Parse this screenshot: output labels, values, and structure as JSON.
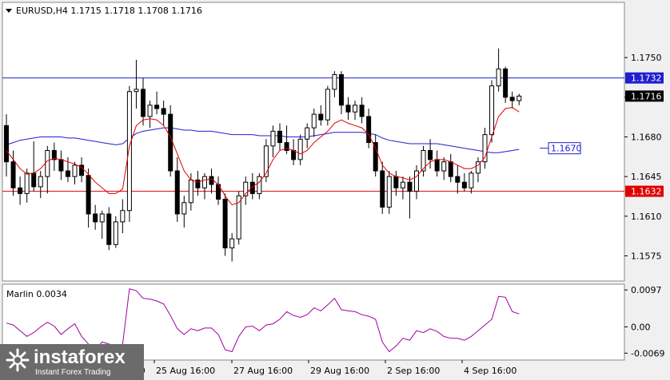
{
  "chart_data": [
    {
      "type": "candlestick",
      "symbol_line": "EURUSD,H4  1.1715 1.1718 1.1708 1.1716",
      "y_ticks": [
        "1.1750",
        "1.1715",
        "1.1680",
        "1.1645",
        "1.1610",
        "1.1575"
      ],
      "y_tick_values": [
        1.175,
        1.1715,
        1.168,
        1.1645,
        1.161,
        1.1575
      ],
      "ylim": [
        1.15535,
        1.1798
      ],
      "x_ticks": [
        "25 Aug 16:00",
        "27 Aug 16:00",
        "29 Aug 16:00",
        "2 Sep 16:00",
        "4 Sep 16:00"
      ],
      "x_tick_cut": "Instant Forex Trading",
      "x_tick_partial": [
        "19",
        "16:00"
      ],
      "levels": [
        {
          "label": "1.1732",
          "value": 1.1732,
          "color": "#1f1fd0"
        },
        {
          "label": "1.1632",
          "value": 1.1632,
          "color": "#e00000"
        }
      ],
      "current_price": {
        "label": "1.1716",
        "value": 1.1716
      },
      "annotation": {
        "label": "1.1670",
        "value": 1.167,
        "color": "#1f1fd0"
      },
      "ohlc": [
        [
          1.169,
          1.17,
          1.1645,
          1.1658
        ],
        [
          1.1658,
          1.1668,
          1.1628,
          1.1635
        ],
        [
          1.1635,
          1.1645,
          1.162,
          1.163
        ],
        [
          1.163,
          1.1652,
          1.1622,
          1.1648
        ],
        [
          1.1648,
          1.1676,
          1.1632,
          1.1636
        ],
        [
          1.1636,
          1.165,
          1.1626,
          1.1645
        ],
        [
          1.1645,
          1.1672,
          1.163,
          1.1668
        ],
        [
          1.1668,
          1.1675,
          1.165,
          1.166
        ],
        [
          1.166,
          1.1668,
          1.1642,
          1.165
        ],
        [
          1.165,
          1.1662,
          1.164,
          1.1645
        ],
        [
          1.1645,
          1.1658,
          1.1638,
          1.1655
        ],
        [
          1.1655,
          1.1662,
          1.164,
          1.1646
        ],
        [
          1.1646,
          1.1652,
          1.16,
          1.1612
        ],
        [
          1.1612,
          1.162,
          1.1598,
          1.1605
        ],
        [
          1.1605,
          1.1615,
          1.159,
          1.1612
        ],
        [
          1.1612,
          1.1618,
          1.158,
          1.1585
        ],
        [
          1.1585,
          1.161,
          1.1582,
          1.1605
        ],
        [
          1.1605,
          1.1625,
          1.1595,
          1.1615
        ],
        [
          1.1615,
          1.1725,
          1.1605,
          1.172
        ],
        [
          1.172,
          1.1748,
          1.1705,
          1.1722
        ],
        [
          1.1722,
          1.1732,
          1.169,
          1.1698
        ],
        [
          1.1698,
          1.1712,
          1.1688,
          1.1708
        ],
        [
          1.1708,
          1.172,
          1.17,
          1.1705
        ],
        [
          1.1705,
          1.1712,
          1.169,
          1.17
        ],
        [
          1.17,
          1.1708,
          1.1645,
          1.165
        ],
        [
          1.165,
          1.1662,
          1.1605,
          1.1612
        ],
        [
          1.1612,
          1.1628,
          1.16,
          1.1622
        ],
        [
          1.1622,
          1.1648,
          1.1615,
          1.1642
        ],
        [
          1.1642,
          1.165,
          1.1628,
          1.1635
        ],
        [
          1.1635,
          1.1648,
          1.1625,
          1.1645
        ],
        [
          1.1645,
          1.1652,
          1.163,
          1.1638
        ],
        [
          1.1638,
          1.1645,
          1.162,
          1.1625
        ],
        [
          1.1625,
          1.163,
          1.1575,
          1.1582
        ],
        [
          1.1582,
          1.1595,
          1.157,
          1.159
        ],
        [
          1.159,
          1.1632,
          1.1585,
          1.1628
        ],
        [
          1.1628,
          1.1645,
          1.162,
          1.164
        ],
        [
          1.164,
          1.1648,
          1.1625,
          1.163
        ],
        [
          1.163,
          1.1648,
          1.1625,
          1.1645
        ],
        [
          1.1645,
          1.1678,
          1.164,
          1.1672
        ],
        [
          1.1672,
          1.169,
          1.1662,
          1.1685
        ],
        [
          1.1685,
          1.1692,
          1.1668,
          1.1675
        ],
        [
          1.1675,
          1.169,
          1.1665,
          1.1668
        ],
        [
          1.1668,
          1.1678,
          1.1655,
          1.166
        ],
        [
          1.166,
          1.1682,
          1.1655,
          1.1678
        ],
        [
          1.1678,
          1.1692,
          1.167,
          1.1688
        ],
        [
          1.1688,
          1.1705,
          1.168,
          1.17
        ],
        [
          1.17,
          1.1708,
          1.169,
          1.1695
        ],
        [
          1.1695,
          1.1725,
          1.169,
          1.1722
        ],
        [
          1.1722,
          1.1738,
          1.1715,
          1.1735
        ],
        [
          1.1735,
          1.1738,
          1.17,
          1.1708
        ],
        [
          1.1708,
          1.1715,
          1.1695,
          1.1702
        ],
        [
          1.1702,
          1.1712,
          1.1695,
          1.1708
        ],
        [
          1.1708,
          1.1715,
          1.1692,
          1.1698
        ],
        [
          1.1698,
          1.1705,
          1.167,
          1.1675
        ],
        [
          1.1675,
          1.1682,
          1.1645,
          1.165
        ],
        [
          1.165,
          1.1658,
          1.1612,
          1.1618
        ],
        [
          1.1618,
          1.165,
          1.1612,
          1.1645
        ],
        [
          1.1645,
          1.165,
          1.1628,
          1.1635
        ],
        [
          1.1635,
          1.1645,
          1.1625,
          1.164
        ],
        [
          1.164,
          1.1645,
          1.1608,
          1.1632
        ],
        [
          1.1632,
          1.1655,
          1.1625,
          1.165
        ],
        [
          1.165,
          1.1672,
          1.1645,
          1.1668
        ],
        [
          1.1668,
          1.1678,
          1.1652,
          1.166
        ],
        [
          1.166,
          1.1668,
          1.1645,
          1.165
        ],
        [
          1.165,
          1.1662,
          1.1642,
          1.1658
        ],
        [
          1.1658,
          1.1665,
          1.164,
          1.1645
        ],
        [
          1.1645,
          1.1655,
          1.163,
          1.164
        ],
        [
          1.164,
          1.1648,
          1.1632,
          1.1635
        ],
        [
          1.1635,
          1.165,
          1.163,
          1.1648
        ],
        [
          1.1648,
          1.1662,
          1.164,
          1.1658
        ],
        [
          1.1658,
          1.1688,
          1.1652,
          1.1682
        ],
        [
          1.1682,
          1.173,
          1.1675,
          1.1725
        ],
        [
          1.1725,
          1.1758,
          1.172,
          1.174
        ],
        [
          1.174,
          1.1742,
          1.171,
          1.1715
        ],
        [
          1.1715,
          1.172,
          1.1705,
          1.1712
        ],
        [
          1.1712,
          1.1718,
          1.1708,
          1.1716
        ]
      ],
      "ma_red": [
        1.1668,
        1.166,
        1.1652,
        1.1647,
        1.1648,
        1.1652,
        1.1659,
        1.1661,
        1.166,
        1.1658,
        1.1656,
        1.1653,
        1.1647,
        1.164,
        1.1635,
        1.163,
        1.163,
        1.1634,
        1.1672,
        1.169,
        1.1695,
        1.1696,
        1.1695,
        1.169,
        1.168,
        1.1665,
        1.165,
        1.1642,
        1.164,
        1.1642,
        1.1643,
        1.1638,
        1.1628,
        1.162,
        1.1622,
        1.163,
        1.1636,
        1.164,
        1.1648,
        1.166,
        1.1668,
        1.167,
        1.1668,
        1.1665,
        1.1668,
        1.1675,
        1.168,
        1.1685,
        1.1692,
        1.1695,
        1.1692,
        1.169,
        1.1688,
        1.1682,
        1.167,
        1.1655,
        1.1648,
        1.1645,
        1.1644,
        1.1642,
        1.1645,
        1.1652,
        1.1658,
        1.166,
        1.166,
        1.1658,
        1.1655,
        1.1652,
        1.1652,
        1.1655,
        1.1662,
        1.168,
        1.1698,
        1.1705,
        1.1706,
        1.1702
      ],
      "ma_blue": [
        1.1673,
        1.1675,
        1.1677,
        1.1678,
        1.1679,
        1.168,
        1.168,
        1.168,
        1.168,
        1.1679,
        1.1679,
        1.1678,
        1.1677,
        1.1676,
        1.1675,
        1.1674,
        1.1673,
        1.1674,
        1.1679,
        1.1683,
        1.1685,
        1.1686,
        1.1687,
        1.1688,
        1.1688,
        1.1687,
        1.1686,
        1.1686,
        1.1685,
        1.1685,
        1.1685,
        1.1684,
        1.1683,
        1.1682,
        1.1682,
        1.1682,
        1.1682,
        1.1681,
        1.1681,
        1.1681,
        1.1681,
        1.168,
        1.168,
        1.168,
        1.168,
        1.1681,
        1.1682,
        1.1683,
        1.1684,
        1.1684,
        1.1684,
        1.1684,
        1.1684,
        1.1683,
        1.1682,
        1.1679,
        1.1677,
        1.1676,
        1.1675,
        1.1674,
        1.1674,
        1.1674,
        1.1674,
        1.1674,
        1.1673,
        1.1672,
        1.1671,
        1.167,
        1.1669,
        1.1668,
        1.1667,
        1.1666,
        1.1666,
        1.1667,
        1.1668,
        1.1669
      ]
    },
    {
      "type": "line",
      "title": "Marlin 0.0034",
      "y_ticks": [
        "0.0097",
        "0.00",
        "-0.0069"
      ],
      "y_tick_values": [
        0.0097,
        0.0,
        -0.0069
      ],
      "ylim": [
        -0.0085,
        0.011
      ],
      "series": [
        {
          "name": "Marlin",
          "color": "#a000a0",
          "values": [
            0.001,
            0.0005,
            -0.001,
            -0.0025,
            -0.0015,
            0.0,
            0.0012,
            0.0002,
            -0.002,
            -0.0005,
            0.0008,
            -0.0025,
            -0.0045,
            -0.006,
            -0.004,
            -0.0045,
            -0.0055,
            -0.0045,
            0.01,
            0.0095,
            0.0075,
            0.0073,
            0.0068,
            0.006,
            0.003,
            -0.0005,
            -0.002,
            -0.0005,
            -0.001,
            -0.0003,
            -0.0003,
            -0.002,
            -0.006,
            -0.0065,
            -0.0025,
            0.0,
            0.0002,
            -0.001,
            0.0005,
            0.0008,
            0.002,
            0.004,
            0.003,
            0.0025,
            0.0032,
            0.005,
            0.0042,
            0.0058,
            0.0075,
            0.0045,
            0.0042,
            0.004,
            0.0032,
            0.0028,
            0.002,
            -0.004,
            -0.0065,
            -0.005,
            -0.003,
            -0.0035,
            -0.001,
            -0.0015,
            -0.0005,
            -0.0012,
            -0.0025,
            -0.003,
            -0.003,
            -0.0035,
            -0.0025,
            -0.001,
            0.0005,
            0.002,
            0.008,
            0.0078,
            0.004,
            0.0034
          ]
        }
      ]
    }
  ],
  "watermark": {
    "brand": "instaforex",
    "tagline": "Instant Forex Trading"
  }
}
